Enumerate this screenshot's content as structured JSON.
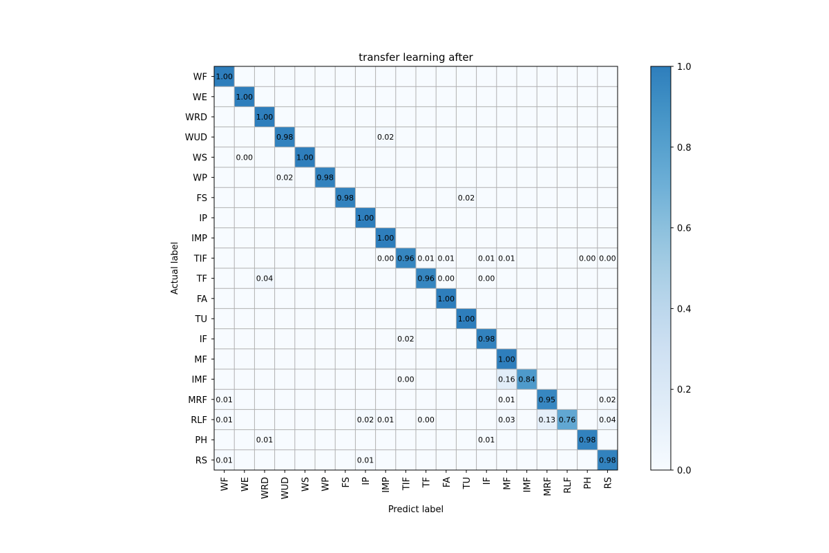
{
  "chart_data": {
    "type": "heatmap",
    "title": "transfer learning after",
    "xlabel": "Predict label",
    "ylabel": "Actual label",
    "labels": [
      "WF",
      "WE",
      "WRD",
      "WUD",
      "WS",
      "WP",
      "FS",
      "IP",
      "IMP",
      "TIF",
      "TF",
      "FA",
      "TU",
      "IF",
      "MF",
      "IMF",
      "MRF",
      "RLF",
      "PH",
      "RS"
    ],
    "vmin": 0,
    "vmax": 1,
    "colormap": "Blues",
    "colorbar_ticks": [
      "0.0",
      "0.2",
      "0.4",
      "0.6",
      "0.8",
      "1.0"
    ],
    "grid": true,
    "cells": [
      {
        "row": 0,
        "col": 0,
        "value": 1.0,
        "label": "1.00"
      },
      {
        "row": 1,
        "col": 1,
        "value": 1.0,
        "label": "1.00"
      },
      {
        "row": 2,
        "col": 2,
        "value": 1.0,
        "label": "1.00"
      },
      {
        "row": 3,
        "col": 3,
        "value": 0.98,
        "label": "0.98"
      },
      {
        "row": 3,
        "col": 8,
        "value": 0.02,
        "label": "0.02"
      },
      {
        "row": 4,
        "col": 1,
        "value": 0.0,
        "label": "0.00"
      },
      {
        "row": 4,
        "col": 4,
        "value": 1.0,
        "label": "1.00"
      },
      {
        "row": 5,
        "col": 3,
        "value": 0.02,
        "label": "0.02"
      },
      {
        "row": 5,
        "col": 5,
        "value": 0.98,
        "label": "0.98"
      },
      {
        "row": 6,
        "col": 6,
        "value": 0.98,
        "label": "0.98"
      },
      {
        "row": 6,
        "col": 12,
        "value": 0.02,
        "label": "0.02"
      },
      {
        "row": 7,
        "col": 7,
        "value": 1.0,
        "label": "1.00"
      },
      {
        "row": 8,
        "col": 8,
        "value": 1.0,
        "label": "1.00"
      },
      {
        "row": 9,
        "col": 8,
        "value": 0.0,
        "label": "0.00"
      },
      {
        "row": 9,
        "col": 9,
        "value": 0.96,
        "label": "0.96"
      },
      {
        "row": 9,
        "col": 10,
        "value": 0.01,
        "label": "0.01"
      },
      {
        "row": 9,
        "col": 11,
        "value": 0.01,
        "label": "0.01"
      },
      {
        "row": 9,
        "col": 13,
        "value": 0.01,
        "label": "0.01"
      },
      {
        "row": 9,
        "col": 14,
        "value": 0.01,
        "label": "0.01"
      },
      {
        "row": 9,
        "col": 18,
        "value": 0.0,
        "label": "0.00"
      },
      {
        "row": 9,
        "col": 19,
        "value": 0.0,
        "label": "0.00"
      },
      {
        "row": 10,
        "col": 2,
        "value": 0.04,
        "label": "0.04"
      },
      {
        "row": 10,
        "col": 10,
        "value": 0.96,
        "label": "0.96"
      },
      {
        "row": 10,
        "col": 11,
        "value": 0.0,
        "label": "0.00"
      },
      {
        "row": 10,
        "col": 13,
        "value": 0.0,
        "label": "0.00"
      },
      {
        "row": 11,
        "col": 11,
        "value": 1.0,
        "label": "1.00"
      },
      {
        "row": 12,
        "col": 12,
        "value": 1.0,
        "label": "1.00"
      },
      {
        "row": 13,
        "col": 9,
        "value": 0.02,
        "label": "0.02"
      },
      {
        "row": 13,
        "col": 13,
        "value": 0.98,
        "label": "0.98"
      },
      {
        "row": 14,
        "col": 14,
        "value": 1.0,
        "label": "1.00"
      },
      {
        "row": 15,
        "col": 9,
        "value": 0.0,
        "label": "0.00"
      },
      {
        "row": 15,
        "col": 14,
        "value": 0.16,
        "label": "0.16"
      },
      {
        "row": 15,
        "col": 15,
        "value": 0.84,
        "label": "0.84"
      },
      {
        "row": 16,
        "col": 0,
        "value": 0.01,
        "label": "0.01"
      },
      {
        "row": 16,
        "col": 14,
        "value": 0.01,
        "label": "0.01"
      },
      {
        "row": 16,
        "col": 16,
        "value": 0.95,
        "label": "0.95"
      },
      {
        "row": 16,
        "col": 19,
        "value": 0.02,
        "label": "0.02"
      },
      {
        "row": 17,
        "col": 0,
        "value": 0.01,
        "label": "0.01"
      },
      {
        "row": 17,
        "col": 7,
        "value": 0.02,
        "label": "0.02"
      },
      {
        "row": 17,
        "col": 8,
        "value": 0.01,
        "label": "0.01"
      },
      {
        "row": 17,
        "col": 10,
        "value": 0.0,
        "label": "0.00"
      },
      {
        "row": 17,
        "col": 14,
        "value": 0.03,
        "label": "0.03"
      },
      {
        "row": 17,
        "col": 16,
        "value": 0.13,
        "label": "0.13"
      },
      {
        "row": 17,
        "col": 17,
        "value": 0.76,
        "label": "0.76"
      },
      {
        "row": 17,
        "col": 19,
        "value": 0.04,
        "label": "0.04"
      },
      {
        "row": 18,
        "col": 2,
        "value": 0.01,
        "label": "0.01"
      },
      {
        "row": 18,
        "col": 13,
        "value": 0.01,
        "label": "0.01"
      },
      {
        "row": 18,
        "col": 18,
        "value": 0.98,
        "label": "0.98"
      },
      {
        "row": 19,
        "col": 0,
        "value": 0.01,
        "label": "0.01"
      },
      {
        "row": 19,
        "col": 7,
        "value": 0.01,
        "label": "0.01"
      },
      {
        "row": 19,
        "col": 19,
        "value": 0.98,
        "label": "0.98"
      }
    ]
  }
}
